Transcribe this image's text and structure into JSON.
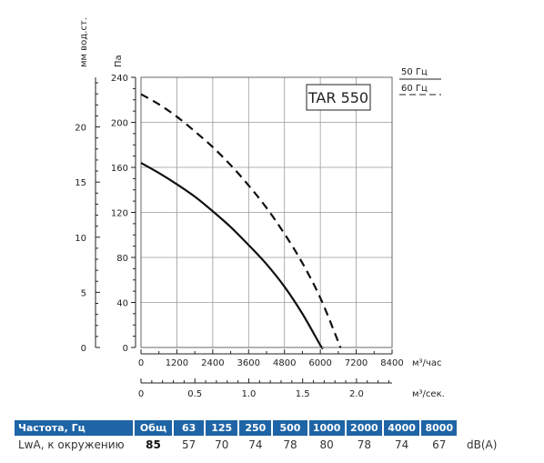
{
  "chart_data": {
    "type": "line",
    "x_unit_label": "м³/час",
    "x2_unit_label": "м³/сек.",
    "y_unit_label": "Па",
    "y2_unit_label": "мм вод.ст.",
    "model_label": "TAR 550",
    "legend": [
      {
        "label": "50 Гц",
        "style": "solid"
      },
      {
        "label": "60 Гц",
        "style": "dashed"
      }
    ],
    "xlim": [
      0,
      8400
    ],
    "ylim": [
      0,
      240
    ],
    "x_ticks": [
      "0",
      "1200",
      "2400",
      "3600",
      "4800",
      "6000",
      "7200",
      "8400"
    ],
    "y_ticks": [
      "0",
      "40",
      "80",
      "120",
      "160",
      "200",
      "240"
    ],
    "x2_ticks": [
      {
        "label": "0",
        "value": 0
      },
      {
        "label": "0.5",
        "value": 0.5
      },
      {
        "label": "1.0",
        "value": 1.0
      },
      {
        "label": "1.5",
        "value": 1.5
      },
      {
        "label": "2.0",
        "value": 2.0
      }
    ],
    "x2_max": 2.33,
    "y2_ticks": [
      {
        "label": "0",
        "value": 0
      },
      {
        "label": "5",
        "value": 5
      },
      {
        "label": "10",
        "value": 10
      },
      {
        "label": "15",
        "value": 15
      },
      {
        "label": "20",
        "value": 20
      }
    ],
    "y2_max": 24.5,
    "grid": true,
    "series": [
      {
        "name": "50 Гц",
        "style": "solid",
        "color": "#111111",
        "x": [
          0,
          600,
          1200,
          1800,
          2400,
          3000,
          3600,
          4200,
          4800,
          5400,
          6000
        ],
        "y": [
          164,
          155,
          145,
          134,
          121,
          107,
          91,
          74,
          54,
          30,
          2
        ]
      },
      {
        "name": "60 Гц",
        "style": "dashed",
        "color": "#111111",
        "x": [
          0,
          600,
          1200,
          1800,
          2400,
          3000,
          3600,
          4200,
          4800,
          5400,
          6000,
          6600
        ],
        "y": [
          225,
          216,
          205,
          192,
          178,
          162,
          144,
          124,
          101,
          75,
          44,
          5
        ]
      }
    ]
  },
  "sound_table": {
    "header_label": "Частота, Гц",
    "row_label": "LwA, к окружению",
    "unit": "dB(A)",
    "columns": [
      "Общ",
      "63",
      "125",
      "250",
      "500",
      "1000",
      "2000",
      "4000",
      "8000"
    ],
    "values": [
      "85",
      "57",
      "70",
      "74",
      "78",
      "80",
      "78",
      "74",
      "67"
    ]
  }
}
